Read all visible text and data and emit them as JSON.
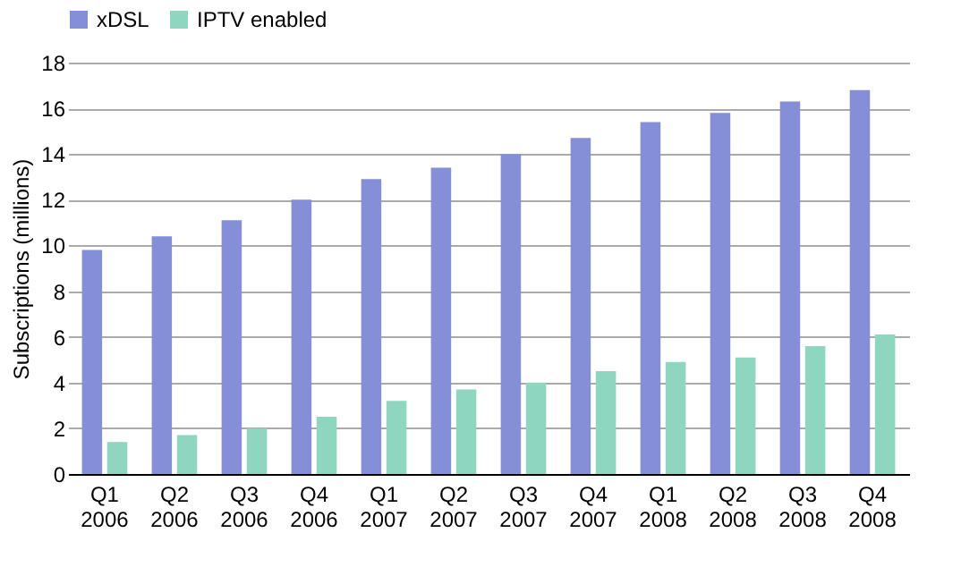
{
  "chart_data": {
    "type": "bar",
    "ylabel": "Subscriptions (millions)",
    "categories": [
      "Q1 2006",
      "Q2 2006",
      "Q3 2006",
      "Q4 2006",
      "Q1 2007",
      "Q2 2007",
      "Q3 2007",
      "Q4 2007",
      "Q1 2008",
      "Q2 2008",
      "Q3 2008",
      "Q4 2008"
    ],
    "series": [
      {
        "name": "xDSL",
        "color": "#848fd8",
        "values": [
          9.8,
          10.4,
          11.1,
          12.0,
          12.9,
          13.4,
          14.0,
          14.7,
          15.4,
          15.8,
          16.3,
          16.8
        ]
      },
      {
        "name": "IPTV enabled",
        "color": "#8fd6c0",
        "values": [
          1.4,
          1.7,
          2.0,
          2.5,
          3.2,
          3.7,
          4.0,
          4.5,
          4.9,
          5.1,
          5.6,
          6.1
        ]
      }
    ],
    "ylim": [
      0,
      18
    ],
    "yticks": [
      0,
      2,
      4,
      6,
      8,
      10,
      12,
      14,
      16,
      18
    ],
    "grid": "y",
    "legend": "top"
  }
}
